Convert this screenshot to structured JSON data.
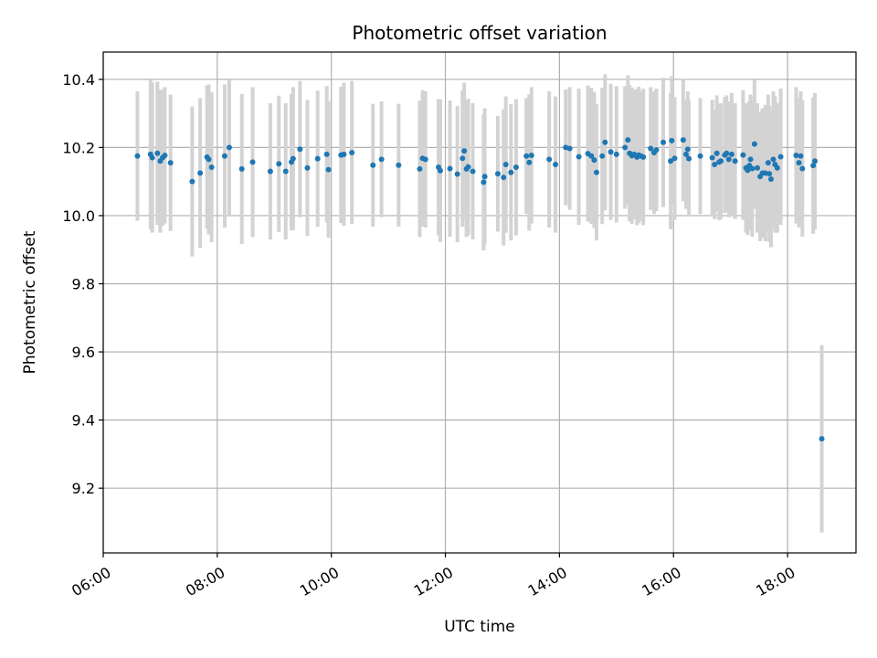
{
  "chart_data": {
    "type": "scatter",
    "title": "Photometric offset variation",
    "xlabel": "UTC time",
    "ylabel": "Photometric offset",
    "x_unit": "hours UTC",
    "xlim": [
      6.0,
      19.2
    ],
    "ylim": [
      9.01,
      10.48
    ],
    "x_ticks": [
      6,
      8,
      10,
      12,
      14,
      16,
      18
    ],
    "x_tick_labels": [
      "06:00",
      "08:00",
      "10:00",
      "12:00",
      "14:00",
      "16:00",
      "18:00"
    ],
    "y_ticks": [
      9.2,
      9.4,
      9.6,
      9.8,
      10.0,
      10.2,
      10.4
    ],
    "y_tick_labels": [
      "9.2",
      "9.4",
      "9.6",
      "9.8",
      "10.0",
      "10.2",
      "10.4"
    ],
    "grid": true,
    "marker_color": "#1f77b4",
    "errorbar_color": "#d3d3d3",
    "series": [
      {
        "x": [
          6.6,
          6.83,
          6.86,
          6.95,
          7.0,
          7.04,
          7.08,
          7.18,
          7.56,
          7.7,
          7.82,
          7.85,
          7.9,
          8.13,
          8.21,
          8.43,
          8.62,
          8.93,
          9.08,
          9.2,
          9.3,
          9.33,
          9.45,
          9.58,
          9.76,
          9.92,
          9.95,
          10.17,
          10.22,
          10.36,
          10.73,
          10.88,
          11.18,
          11.55,
          11.6,
          11.65,
          11.88,
          11.91,
          12.08,
          12.21,
          12.3,
          12.33,
          12.37,
          12.4,
          12.48,
          12.67,
          12.69,
          12.92,
          13.02,
          13.06,
          13.15,
          13.24,
          13.42,
          13.47,
          13.51,
          13.82,
          13.93,
          14.11,
          14.18,
          14.34,
          14.5,
          14.56,
          14.61,
          14.65,
          14.75,
          14.8,
          14.9,
          15.0,
          15.15,
          15.2,
          15.23,
          15.27,
          15.31,
          15.36,
          15.39,
          15.43,
          15.47,
          15.6,
          15.66,
          15.7,
          15.82,
          15.95,
          15.97,
          16.02,
          16.17,
          16.22,
          16.25,
          16.27,
          16.47,
          16.68,
          16.72,
          16.76,
          16.8,
          16.83,
          16.9,
          16.93,
          16.97,
          17.02,
          17.08,
          17.22,
          17.27,
          17.3,
          17.33,
          17.35,
          17.38,
          17.42,
          17.47,
          17.52,
          17.56,
          17.61,
          17.66,
          17.68,
          17.71,
          17.75,
          17.78,
          17.82,
          17.88,
          18.15,
          18.2,
          18.23,
          18.26,
          18.45,
          18.48,
          18.6
        ],
        "y": [
          10.175,
          10.18,
          10.17,
          10.183,
          10.16,
          10.17,
          10.177,
          10.155,
          10.1,
          10.125,
          10.172,
          10.165,
          10.142,
          10.175,
          10.2,
          10.137,
          10.157,
          10.13,
          10.152,
          10.13,
          10.157,
          10.167,
          10.195,
          10.14,
          10.167,
          10.18,
          10.135,
          10.178,
          10.18,
          10.185,
          10.148,
          10.165,
          10.148,
          10.137,
          10.168,
          10.165,
          10.142,
          10.132,
          10.138,
          10.122,
          10.168,
          10.19,
          10.137,
          10.143,
          10.13,
          10.098,
          10.115,
          10.123,
          10.112,
          10.15,
          10.127,
          10.142,
          10.175,
          10.156,
          10.177,
          10.165,
          10.15,
          10.2,
          10.197,
          10.173,
          10.182,
          10.175,
          10.163,
          10.127,
          10.175,
          10.215,
          10.187,
          10.18,
          10.2,
          10.222,
          10.183,
          10.176,
          10.18,
          10.172,
          10.178,
          10.175,
          10.172,
          10.197,
          10.185,
          10.193,
          10.215,
          10.16,
          10.22,
          10.168,
          10.222,
          10.18,
          10.195,
          10.167,
          10.175,
          10.17,
          10.15,
          10.183,
          10.157,
          10.16,
          10.178,
          10.183,
          10.165,
          10.18,
          10.16,
          10.178,
          10.14,
          10.133,
          10.147,
          10.165,
          10.138,
          10.21,
          10.14,
          10.115,
          10.125,
          10.125,
          10.155,
          10.123,
          10.107,
          10.165,
          10.15,
          10.14,
          10.173,
          10.177,
          10.155,
          10.175,
          10.138,
          10.147,
          10.16,
          9.345
        ],
        "err": [
          0.19,
          0.22,
          0.22,
          0.21,
          0.21,
          0.2,
          0.2,
          0.2,
          0.22,
          0.22,
          0.21,
          0.22,
          0.22,
          0.21,
          0.2,
          0.22,
          0.22,
          0.2,
          0.2,
          0.2,
          0.2,
          0.21,
          0.2,
          0.2,
          0.2,
          0.2,
          0.2,
          0.2,
          0.21,
          0.21,
          0.18,
          0.17,
          0.18,
          0.2,
          0.2,
          0.2,
          0.2,
          0.21,
          0.2,
          0.2,
          0.2,
          0.2,
          0.2,
          0.2,
          0.2,
          0.2,
          0.2,
          0.17,
          0.2,
          0.2,
          0.2,
          0.2,
          0.17,
          0.2,
          0.2,
          0.2,
          0.2,
          0.17,
          0.18,
          0.2,
          0.2,
          0.2,
          0.2,
          0.2,
          0.2,
          0.2,
          0.2,
          0.2,
          0.18,
          0.19,
          0.2,
          0.2,
          0.19,
          0.2,
          0.2,
          0.19,
          0.2,
          0.18,
          0.18,
          0.18,
          0.19,
          0.2,
          0.19,
          0.18,
          0.18,
          0.16,
          0.17,
          0.17,
          0.17,
          0.17,
          0.16,
          0.17,
          0.17,
          0.17,
          0.17,
          0.17,
          0.17,
          0.18,
          0.17,
          0.19,
          0.19,
          0.19,
          0.19,
          0.19,
          0.2,
          0.19,
          0.19,
          0.19,
          0.19,
          0.2,
          0.2,
          0.2,
          0.2,
          0.2,
          0.2,
          0.19,
          0.2,
          0.2,
          0.19,
          0.19,
          0.2,
          0.2,
          0.2,
          0.275
        ]
      }
    ]
  }
}
